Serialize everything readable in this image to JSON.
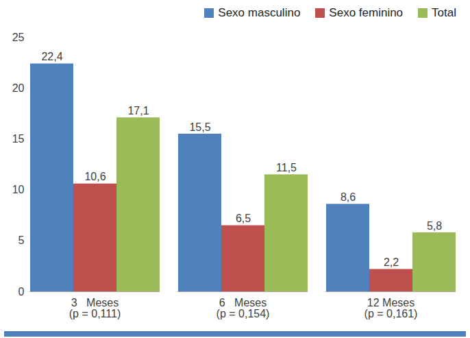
{
  "chart_data": {
    "type": "bar",
    "categories": [
      "3   Meses\n(p = 0,111)",
      "6   Meses\n(p = 0,154)",
      "12 Meses\n(p = 0,161)"
    ],
    "series": [
      {
        "name": "Sexo masculino",
        "color": "#4f81bd",
        "values": [
          22.4,
          15.5,
          8.6
        ],
        "value_labels": [
          "22,4",
          "15,5",
          "8,6"
        ]
      },
      {
        "name": "Sexo feminino",
        "color": "#c0504d",
        "values": [
          10.6,
          6.5,
          2.2
        ],
        "value_labels": [
          "10,6",
          "6,5",
          "2,2"
        ]
      },
      {
        "name": "Total",
        "color": "#9bbb59",
        "values": [
          17.1,
          11.5,
          5.8
        ],
        "value_labels": [
          "17,1",
          "11,5",
          "5,8"
        ]
      }
    ],
    "ylim": [
      0,
      25
    ],
    "yticks": [
      0,
      5,
      10,
      15,
      20,
      25
    ],
    "grid": false,
    "legend": "top-right",
    "data_labels": true
  }
}
